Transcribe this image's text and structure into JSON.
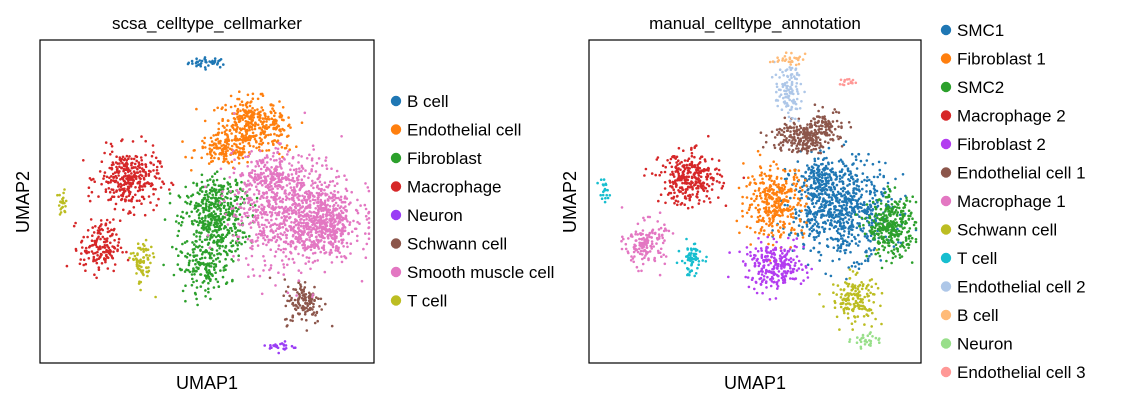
{
  "chart_data": [
    {
      "type": "scatter",
      "title": "scsa_celltype_cellmarker",
      "xlabel": "UMAP1",
      "ylabel": "UMAP2",
      "grid": false,
      "legend_position": "right",
      "series": [
        {
          "name": "B cell",
          "color": "#1f77b4",
          "clusters": [
            {
              "x": 0.505,
              "y": 0.93,
              "sx": 0.03,
              "sy": 0.008,
              "n": 40
            }
          ]
        },
        {
          "name": "Endothelial cell",
          "color": "#ff7f0e",
          "clusters": [
            {
              "x": 0.625,
              "y": 0.74,
              "sx": 0.045,
              "sy": 0.04,
              "n": 300
            },
            {
              "x": 0.555,
              "y": 0.66,
              "sx": 0.045,
              "sy": 0.025,
              "n": 140
            },
            {
              "x": 0.715,
              "y": 0.72,
              "sx": 0.022,
              "sy": 0.03,
              "n": 60
            }
          ]
        },
        {
          "name": "Fibroblast",
          "color": "#2ca02c",
          "clusters": [
            {
              "x": 0.52,
              "y": 0.43,
              "sx": 0.05,
              "sy": 0.06,
              "n": 380
            },
            {
              "x": 0.49,
              "y": 0.29,
              "sx": 0.04,
              "sy": 0.035,
              "n": 140
            },
            {
              "x": 0.54,
              "y": 0.52,
              "sx": 0.04,
              "sy": 0.03,
              "n": 120
            }
          ]
        },
        {
          "name": "Macrophage",
          "color": "#d62728",
          "clusters": [
            {
              "x": 0.265,
              "y": 0.57,
              "sx": 0.045,
              "sy": 0.045,
              "n": 330
            },
            {
              "x": 0.18,
              "y": 0.36,
              "sx": 0.03,
              "sy": 0.04,
              "n": 160
            }
          ]
        },
        {
          "name": "Neuron",
          "color": "#9a3cf5",
          "clusters": [
            {
              "x": 0.725,
              "y": 0.05,
              "sx": 0.02,
              "sy": 0.008,
              "n": 25
            }
          ]
        },
        {
          "name": "Schwann cell",
          "color": "#8c564b",
          "clusters": [
            {
              "x": 0.79,
              "y": 0.19,
              "sx": 0.03,
              "sy": 0.035,
              "n": 130
            }
          ]
        },
        {
          "name": "Smooth muscle cell",
          "color": "#e377c2",
          "clusters": [
            {
              "x": 0.76,
              "y": 0.47,
              "sx": 0.09,
              "sy": 0.085,
              "n": 950
            },
            {
              "x": 0.86,
              "y": 0.42,
              "sx": 0.04,
              "sy": 0.04,
              "n": 250
            },
            {
              "x": 0.68,
              "y": 0.58,
              "sx": 0.04,
              "sy": 0.03,
              "n": 150
            }
          ]
        },
        {
          "name": "T cell",
          "color": "#bcbd22",
          "clusters": [
            {
              "x": 0.305,
              "y": 0.31,
              "sx": 0.016,
              "sy": 0.035,
              "n": 80
            },
            {
              "x": 0.065,
              "y": 0.49,
              "sx": 0.008,
              "sy": 0.02,
              "n": 22
            }
          ]
        }
      ]
    },
    {
      "type": "scatter",
      "title": "manual_celltype_annotation",
      "xlabel": "UMAP1",
      "ylabel": "UMAP2",
      "grid": false,
      "legend_position": "right",
      "series": [
        {
          "name": "SMC1",
          "color": "#1f77b4",
          "clusters": [
            {
              "x": 0.76,
              "y": 0.48,
              "sx": 0.075,
              "sy": 0.075,
              "n": 750
            },
            {
              "x": 0.69,
              "y": 0.57,
              "sx": 0.035,
              "sy": 0.03,
              "n": 110
            }
          ]
        },
        {
          "name": "Fibroblast 1",
          "color": "#ff7f0e",
          "clusters": [
            {
              "x": 0.56,
              "y": 0.5,
              "sx": 0.045,
              "sy": 0.055,
              "n": 330
            }
          ]
        },
        {
          "name": "SMC2",
          "color": "#2ca02c",
          "clusters": [
            {
              "x": 0.91,
              "y": 0.42,
              "sx": 0.035,
              "sy": 0.045,
              "n": 330
            }
          ]
        },
        {
          "name": "Macrophage 2",
          "color": "#d62728",
          "clusters": [
            {
              "x": 0.305,
              "y": 0.57,
              "sx": 0.045,
              "sy": 0.04,
              "n": 300
            }
          ]
        },
        {
          "name": "Fibroblast 2",
          "color": "#b33df0",
          "clusters": [
            {
              "x": 0.56,
              "y": 0.3,
              "sx": 0.045,
              "sy": 0.035,
              "n": 260
            }
          ]
        },
        {
          "name": "Endothelial cell 1",
          "color": "#8c564b",
          "clusters": [
            {
              "x": 0.64,
              "y": 0.7,
              "sx": 0.045,
              "sy": 0.025,
              "n": 230
            },
            {
              "x": 0.72,
              "y": 0.74,
              "sx": 0.025,
              "sy": 0.02,
              "n": 70
            }
          ]
        },
        {
          "name": "Macrophage 1",
          "color": "#e377c2",
          "clusters": [
            {
              "x": 0.17,
              "y": 0.37,
              "sx": 0.03,
              "sy": 0.035,
              "n": 150
            }
          ]
        },
        {
          "name": "Schwann cell",
          "color": "#bcbd22",
          "clusters": [
            {
              "x": 0.8,
              "y": 0.2,
              "sx": 0.035,
              "sy": 0.035,
              "n": 160
            }
          ]
        },
        {
          "name": "T cell",
          "color": "#17becf",
          "clusters": [
            {
              "x": 0.31,
              "y": 0.32,
              "sx": 0.016,
              "sy": 0.025,
              "n": 70
            },
            {
              "x": 0.045,
              "y": 0.53,
              "sx": 0.008,
              "sy": 0.02,
              "n": 20
            }
          ]
        },
        {
          "name": "Endothelial cell 2",
          "color": "#aec7e8",
          "clusters": [
            {
              "x": 0.6,
              "y": 0.84,
              "sx": 0.02,
              "sy": 0.04,
              "n": 110
            }
          ]
        },
        {
          "name": "B cell",
          "color": "#ffbb78",
          "clusters": [
            {
              "x": 0.6,
              "y": 0.94,
              "sx": 0.025,
              "sy": 0.008,
              "n": 30
            }
          ]
        },
        {
          "name": "Neuron",
          "color": "#98df8a",
          "clusters": [
            {
              "x": 0.83,
              "y": 0.07,
              "sx": 0.02,
              "sy": 0.012,
              "n": 30
            }
          ]
        },
        {
          "name": "Endothelial cell 3",
          "color": "#ff9896",
          "clusters": [
            {
              "x": 0.78,
              "y": 0.87,
              "sx": 0.012,
              "sy": 0.006,
              "n": 15
            }
          ]
        }
      ]
    }
  ]
}
